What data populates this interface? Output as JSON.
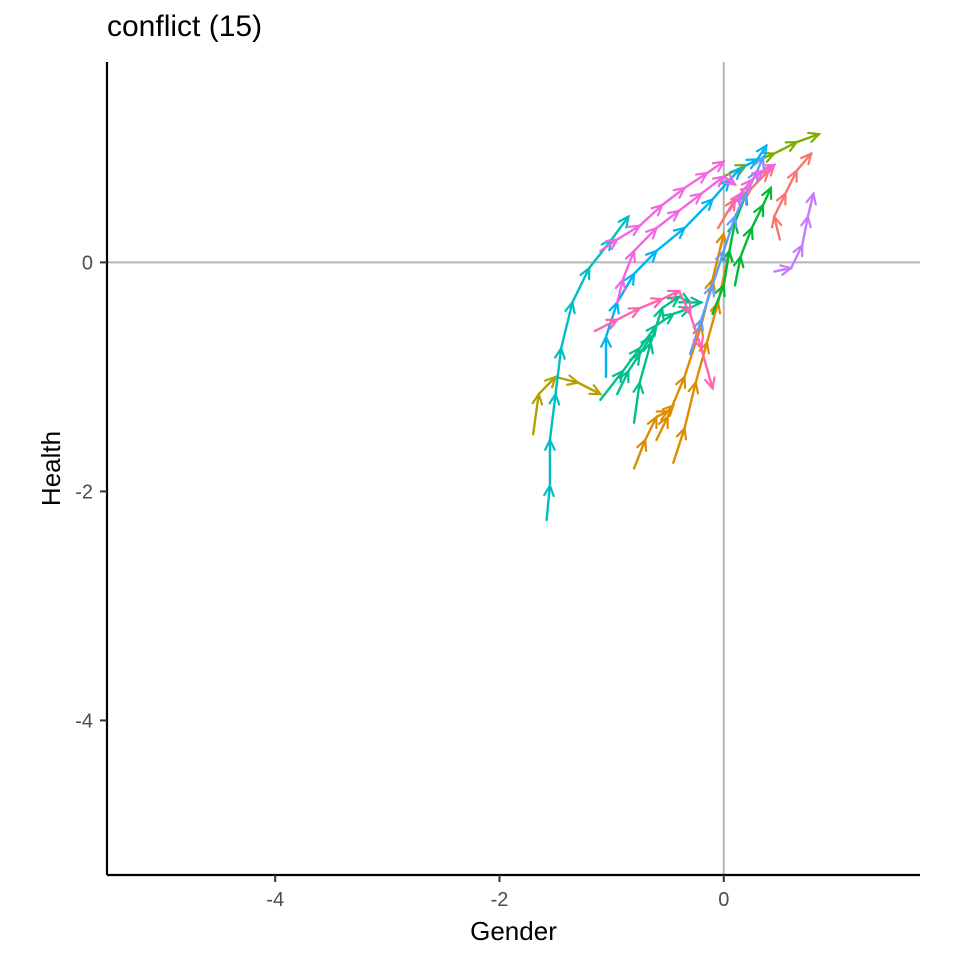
{
  "title": "conflict (15)",
  "chart_data": {
    "type": "line",
    "title": "conflict (15)",
    "xlabel": "Gender",
    "ylabel": "Health",
    "xlim": [
      -5.5,
      1.75
    ],
    "ylim": [
      -5.35,
      1.75
    ],
    "xticks": [
      -4,
      -2,
      0
    ],
    "xtick_labels": [
      "-4",
      "-2",
      "0"
    ],
    "yticks": [
      -4,
      -2,
      0
    ],
    "ytick_labels": [
      "-4",
      "-2",
      "0"
    ],
    "reference_lines": {
      "x": 0,
      "y": 0,
      "color": "#b3b3b3"
    },
    "grid": false,
    "legend": "none",
    "arrows": true,
    "series": [
      {
        "color": "#F8766D",
        "x": [
          -0.05,
          0.1,
          0.25,
          0.4,
          0.45
        ],
        "y": [
          0.3,
          0.55,
          0.65,
          0.8,
          0.85
        ]
      },
      {
        "color": "#F8766D",
        "x": [
          0.5,
          0.45,
          0.55,
          0.65,
          0.78
        ],
        "y": [
          0.2,
          0.4,
          0.6,
          0.8,
          0.95
        ]
      },
      {
        "color": "#DE8C00",
        "x": [
          -0.8,
          -0.7,
          -0.6,
          -0.5,
          -0.45
        ],
        "y": [
          -1.8,
          -1.55,
          -1.35,
          -1.3,
          -1.25
        ]
      },
      {
        "color": "#DE8C00",
        "x": [
          -0.45,
          -0.35,
          -0.25,
          -0.15,
          -0.05,
          0.05
        ],
        "y": [
          -1.75,
          -1.45,
          -1.05,
          -0.7,
          -0.35,
          0.1
        ]
      },
      {
        "color": "#DE8C00",
        "x": [
          -0.6,
          -0.5,
          -0.35,
          -0.2,
          -0.1,
          0.0
        ],
        "y": [
          -1.55,
          -1.35,
          -1.0,
          -0.55,
          -0.15,
          0.25
        ]
      },
      {
        "color": "#B79F00",
        "x": [
          -1.7,
          -1.65,
          -1.5,
          -1.3,
          -1.1
        ],
        "y": [
          -1.5,
          -1.15,
          -1.0,
          -1.05,
          -1.15
        ]
      },
      {
        "color": "#7CAE00",
        "x": [
          0.0,
          0.2,
          0.45,
          0.65,
          0.85
        ],
        "y": [
          0.75,
          0.85,
          0.95,
          1.05,
          1.12
        ]
      },
      {
        "color": "#00BA38",
        "x": [
          0.1,
          0.15,
          0.25,
          0.35,
          0.42
        ],
        "y": [
          -0.2,
          0.05,
          0.3,
          0.5,
          0.65
        ]
      },
      {
        "color": "#00BA38",
        "x": [
          -0.1,
          0.0,
          0.05,
          0.1,
          0.2
        ],
        "y": [
          -0.45,
          -0.2,
          0.1,
          0.35,
          0.6
        ]
      },
      {
        "color": "#00C08B",
        "x": [
          -1.1,
          -0.9,
          -0.75,
          -0.6,
          -0.45,
          -0.3
        ],
        "y": [
          -1.2,
          -0.95,
          -0.75,
          -0.55,
          -0.45,
          -0.4
        ]
      },
      {
        "color": "#00C08B",
        "x": [
          -0.8,
          -0.75,
          -0.65,
          -0.55,
          -0.4,
          -0.3,
          -0.2
        ],
        "y": [
          -1.4,
          -1.05,
          -0.7,
          -0.4,
          -0.3,
          -0.35,
          -0.35
        ]
      },
      {
        "color": "#00C08B",
        "x": [
          -0.95,
          -0.85,
          -0.75,
          -0.65
        ],
        "y": [
          -1.15,
          -0.95,
          -0.8,
          -0.65
        ]
      },
      {
        "color": "#00BFC4",
        "x": [
          -1.58,
          -1.55,
          -1.55,
          -1.5,
          -1.45,
          -1.35,
          -1.2,
          -1.0,
          -0.85
        ],
        "y": [
          -2.25,
          -1.95,
          -1.55,
          -1.15,
          -0.75,
          -0.35,
          -0.05,
          0.2,
          0.4
        ]
      },
      {
        "color": "#00B4F0",
        "x": [
          -1.05,
          -1.05,
          -0.95,
          -0.8,
          -0.6,
          -0.35,
          -0.1,
          0.05,
          0.15,
          0.3,
          0.38
        ],
        "y": [
          -1.0,
          -0.65,
          -0.35,
          -0.1,
          0.1,
          0.3,
          0.55,
          0.72,
          0.82,
          0.9,
          1.02
        ]
      },
      {
        "color": "#619CFF",
        "x": [
          -0.3,
          -0.2,
          -0.1,
          0.0,
          0.1,
          0.2,
          0.3,
          0.35
        ],
        "y": [
          -0.8,
          -0.5,
          -0.2,
          0.1,
          0.4,
          0.6,
          0.8,
          0.92
        ]
      },
      {
        "color": "#C77CFF",
        "x": [
          0.45,
          0.6,
          0.7,
          0.75,
          0.8
        ],
        "y": [
          -0.08,
          -0.05,
          0.15,
          0.4,
          0.6
        ]
      },
      {
        "color": "#F564E3",
        "x": [
          -0.95,
          -0.9,
          -0.8,
          -0.6,
          -0.4,
          -0.2,
          0.0,
          0.1
        ],
        "y": [
          -0.35,
          -0.15,
          0.1,
          0.3,
          0.45,
          0.6,
          0.75,
          0.68
        ]
      },
      {
        "color": "#F564E3",
        "x": [
          -1.1,
          -0.95,
          -0.75,
          -0.55,
          -0.35,
          -0.15,
          0.0
        ],
        "y": [
          0.1,
          0.2,
          0.32,
          0.5,
          0.65,
          0.78,
          0.88
        ]
      },
      {
        "color": "#F564E3",
        "x": [
          0.05,
          0.15,
          0.25,
          0.35,
          0.45
        ],
        "y": [
          0.45,
          0.6,
          0.72,
          0.8,
          0.85
        ]
      },
      {
        "color": "#FF64B0",
        "x": [
          -1.15,
          -0.95,
          -0.75,
          -0.55,
          -0.4,
          -0.3,
          -0.2,
          -0.1
        ],
        "y": [
          -0.6,
          -0.5,
          -0.4,
          -0.32,
          -0.25,
          -0.45,
          -0.75,
          -1.1
        ]
      }
    ]
  }
}
